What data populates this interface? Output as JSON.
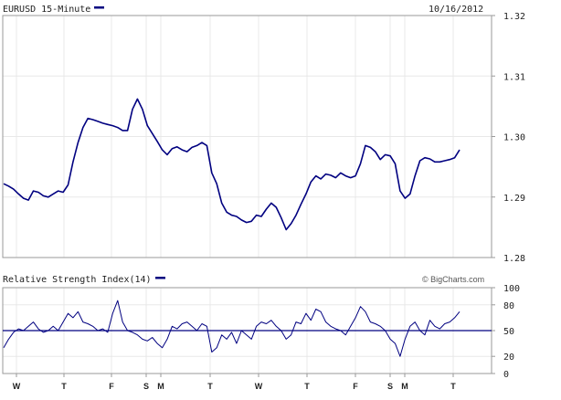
{
  "header": {
    "symbol_label": "EURUSD 15-Minute",
    "date": "10/16/2012",
    "credit": "© BigCharts.com"
  },
  "colors": {
    "series": "#000080",
    "grid": "#e8e8e8",
    "frame": "#9a9a9a",
    "text": "#222222"
  },
  "chart_data": [
    {
      "type": "line",
      "title": "EURUSD 15-Minute",
      "series": [
        {
          "name": "EURUSD",
          "values": [
            1.2922,
            1.2918,
            1.2913,
            1.2905,
            1.2898,
            1.2895,
            1.291,
            1.2908,
            1.2902,
            1.29,
            1.2905,
            1.291,
            1.2908,
            1.292,
            1.2958,
            1.299,
            1.3015,
            1.303,
            1.3028,
            1.3025,
            1.3022,
            1.302,
            1.3018,
            1.3015,
            1.301,
            1.301,
            1.3045,
            1.3062,
            1.3045,
            1.3018,
            1.3005,
            1.2992,
            1.2978,
            1.297,
            1.298,
            1.2983,
            1.2978,
            1.2975,
            1.2982,
            1.2985,
            1.299,
            1.2985,
            1.294,
            1.2922,
            1.289,
            1.2875,
            1.287,
            1.2868,
            1.2862,
            1.2858,
            1.286,
            1.287,
            1.2868,
            1.288,
            1.289,
            1.2883,
            1.2866,
            1.2846,
            1.2856,
            1.287,
            1.2888,
            1.2905,
            1.2925,
            1.2935,
            1.293,
            1.2938,
            1.2936,
            1.2932,
            1.294,
            1.2935,
            1.2932,
            1.2935,
            1.2955,
            1.2985,
            1.2982,
            1.2975,
            1.2962,
            1.297,
            1.2968,
            1.2955,
            1.291,
            1.2898,
            1.2905,
            1.2935,
            1.296,
            1.2965,
            1.2963,
            1.2958,
            1.2958,
            1.296,
            1.2962,
            1.2965,
            1.2978
          ]
        }
      ],
      "x_ticks": [
        "W",
        "T",
        "F",
        "S",
        "M",
        "T",
        "W",
        "T",
        "F",
        "S",
        "M",
        "T"
      ],
      "ylim": [
        1.28,
        1.32
      ],
      "y_ticks": [
        1.28,
        1.29,
        1.3,
        1.31,
        1.32
      ],
      "grid": true
    },
    {
      "type": "line",
      "title": "Relative Strength Index(14)",
      "series": [
        {
          "name": "Relative Strength Index(14)",
          "values": [
            30,
            40,
            48,
            52,
            50,
            55,
            60,
            52,
            48,
            50,
            55,
            50,
            60,
            70,
            65,
            72,
            60,
            58,
            55,
            50,
            52,
            48,
            70,
            85,
            60,
            50,
            48,
            45,
            40,
            38,
            42,
            35,
            30,
            40,
            55,
            52,
            58,
            60,
            55,
            50,
            58,
            55,
            25,
            30,
            45,
            40,
            48,
            35,
            50,
            45,
            40,
            55,
            60,
            58,
            62,
            55,
            50,
            40,
            45,
            60,
            58,
            70,
            62,
            75,
            72,
            60,
            55,
            52,
            50,
            45,
            55,
            65,
            78,
            72,
            60,
            58,
            55,
            50,
            40,
            35,
            20,
            40,
            55,
            60,
            50,
            45,
            62,
            55,
            52,
            58,
            60,
            65,
            72
          ]
        }
      ],
      "x_ticks": [
        "W",
        "T",
        "F",
        "S",
        "M",
        "T",
        "W",
        "T",
        "F",
        "S",
        "M",
        "T"
      ],
      "ylim": [
        0,
        100
      ],
      "y_ticks": [
        0,
        20,
        50,
        80,
        100
      ],
      "reference_line": 50,
      "grid": true
    }
  ]
}
